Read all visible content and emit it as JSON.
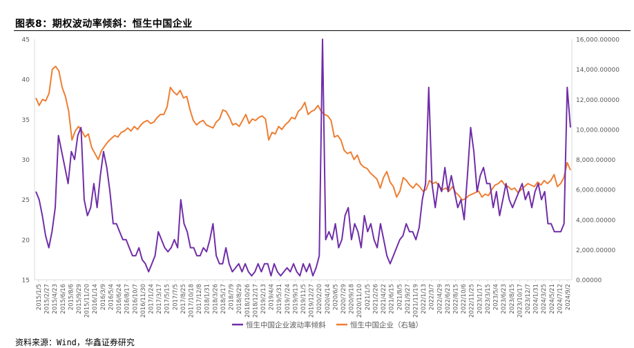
{
  "title": "图表8：期权波动率倾斜：恒生中国企业",
  "source": "资料来源：Wind，华鑫证券研究",
  "colors": {
    "skew": "#6f2da8",
    "index": "#ee7d31",
    "axis": "#d9d9d9",
    "text": "#595959"
  },
  "chart_data": {
    "type": "line",
    "grid": false,
    "legend_position": "bottom",
    "y_left": {
      "ylim": [
        15,
        45
      ],
      "ticks": [
        "15",
        "20",
        "25",
        "30",
        "35",
        "40",
        "45"
      ]
    },
    "y_right": {
      "ylim": [
        0,
        16000
      ],
      "ticks": [
        "0.00000",
        "2,000.00000",
        "4,000.00000",
        "6,000.00000",
        "8,000.00000",
        "10,000.00000",
        "12,000.00000",
        "14,000.00000",
        "16,000.00000"
      ]
    },
    "x_ticks": [
      "2015/1/5",
      "2015/2/27",
      "2015/4/23",
      "2015/6/16",
      "2015/8/6",
      "2015/9/29",
      "2015/11/20",
      "2016/1/14",
      "2016/3/9",
      "2016/5/4",
      "2016/6/24",
      "2016/8/17",
      "2016/10/7",
      "2016/11/30",
      "2017/1/24",
      "2017/3/17",
      "2017/5/15",
      "2017/7/5",
      "2017/8/25",
      "2017/10/18",
      "2017/12/8",
      "2018/1/31",
      "2018/3/26",
      "2018/5/17",
      "2018/7/9",
      "2018/8/29",
      "2018/10/26",
      "2018/12/17",
      "2019/2/13",
      "2019/4/4",
      "2019/5/31",
      "2019/7/24",
      "2019/9/13",
      "2019/11/5",
      "2019/12/27",
      "2020/2/20",
      "2020/4/14",
      "2020/6/5",
      "2020/7/29",
      "2020/9/18",
      "2020/11/10",
      "2021/1/5",
      "2021/2/26",
      "2021/4/22",
      "2021/6/15",
      "2021/8/5",
      "2021/9/27",
      "2021/11/19",
      "2022/1/13",
      "2022/3/7",
      "2022/4/29",
      "2022/6/23",
      "2022/8/15",
      "2022/10/6",
      "2022/11/25",
      "2023/1/17",
      "2023/3/15",
      "2023/5/4",
      "2023/6/23",
      "2023/8/15",
      "2023/10/17",
      "2023/12/7",
      "2024/1/31",
      "2024/3/25",
      "2024/5/21",
      "2024/7/12",
      "2024/9/2"
    ],
    "series": [
      {
        "name": "恒生中国企业波动率倾斜",
        "axis": "left",
        "values": [
          26,
          25,
          23,
          20.5,
          19,
          21,
          24,
          33,
          31,
          29,
          27,
          31,
          30,
          33,
          34,
          25,
          23,
          24,
          27,
          24,
          28,
          31,
          29,
          26,
          22,
          22,
          21,
          20,
          20,
          19,
          18,
          18,
          19,
          17.5,
          17,
          16,
          17,
          18,
          21,
          20,
          19,
          18.5,
          19,
          20,
          19,
          25,
          22,
          21,
          19,
          19,
          18,
          18,
          19,
          18.5,
          20,
          22,
          18,
          17,
          17,
          19,
          17,
          16,
          16.5,
          17,
          16,
          17,
          16,
          15.5,
          16,
          17,
          16,
          17,
          17,
          15.5,
          17,
          16,
          15.5,
          16,
          16.5,
          16,
          17,
          16,
          15.5,
          17,
          16,
          17,
          15.5,
          16.5,
          18,
          45,
          20,
          21,
          20,
          22,
          19,
          20,
          23,
          24,
          20,
          22,
          21,
          19,
          23,
          21,
          22,
          20,
          19,
          22,
          20,
          18,
          17,
          18,
          19,
          20,
          20.5,
          22,
          21,
          21,
          20,
          21.5,
          25,
          27,
          39,
          27,
          24,
          27,
          26,
          29,
          26,
          28,
          26,
          24,
          25,
          22.5,
          28,
          34,
          31,
          26,
          28,
          29,
          27,
          27,
          24,
          26,
          23,
          25,
          27,
          25,
          24,
          25,
          26,
          27,
          25,
          26,
          24,
          26,
          27,
          25,
          26,
          22,
          22,
          21,
          21,
          21,
          22,
          39,
          34
        ]
      },
      {
        "name": "恒生中国企业（右轴）",
        "axis": "right",
        "values": [
          12100,
          11600,
          12000,
          11900,
          12400,
          14000,
          14200,
          13900,
          12800,
          12200,
          11200,
          9300,
          9900,
          10200,
          9900,
          9500,
          9700,
          8800,
          8400,
          8000,
          8600,
          8900,
          9200,
          9400,
          9600,
          9500,
          9800,
          9900,
          10100,
          9900,
          10200,
          10000,
          10300,
          10500,
          10600,
          10400,
          10500,
          10800,
          11000,
          11000,
          11500,
          12800,
          12500,
          12300,
          12600,
          12100,
          12200,
          11300,
          10600,
          10300,
          10500,
          10600,
          10300,
          10200,
          10100,
          10500,
          10700,
          11300,
          11200,
          10800,
          10300,
          10400,
          10200,
          10600,
          11000,
          10400,
          10700,
          10600,
          10800,
          10900,
          10700,
          9300,
          9800,
          9700,
          10200,
          10000,
          10300,
          10500,
          10800,
          10700,
          11200,
          11400,
          11800,
          11000,
          11200,
          11300,
          11600,
          11200,
          11000,
          10900,
          10600,
          9500,
          9600,
          9300,
          8600,
          8400,
          8500,
          8000,
          8300,
          7700,
          7500,
          7400,
          7100,
          6900,
          6700,
          6100,
          6800,
          7200,
          6500,
          6200,
          5500,
          5900,
          6800,
          6600,
          6300,
          6100,
          6400,
          6200,
          5900,
          6000,
          6600,
          6400,
          6500,
          6200,
          6000,
          6100,
          5900,
          6200,
          5800,
          5600,
          5300,
          5400,
          5600,
          5700,
          5800,
          5900,
          5500,
          5700,
          5600,
          6000,
          6300,
          6400,
          6600,
          6300,
          6200,
          6000,
          6100,
          5800,
          6000,
          6200,
          6400,
          6300,
          6200,
          6500,
          6300,
          6600,
          6400,
          6600,
          7000,
          6200,
          6400,
          6800,
          7800,
          7300
        ]
      }
    ]
  }
}
